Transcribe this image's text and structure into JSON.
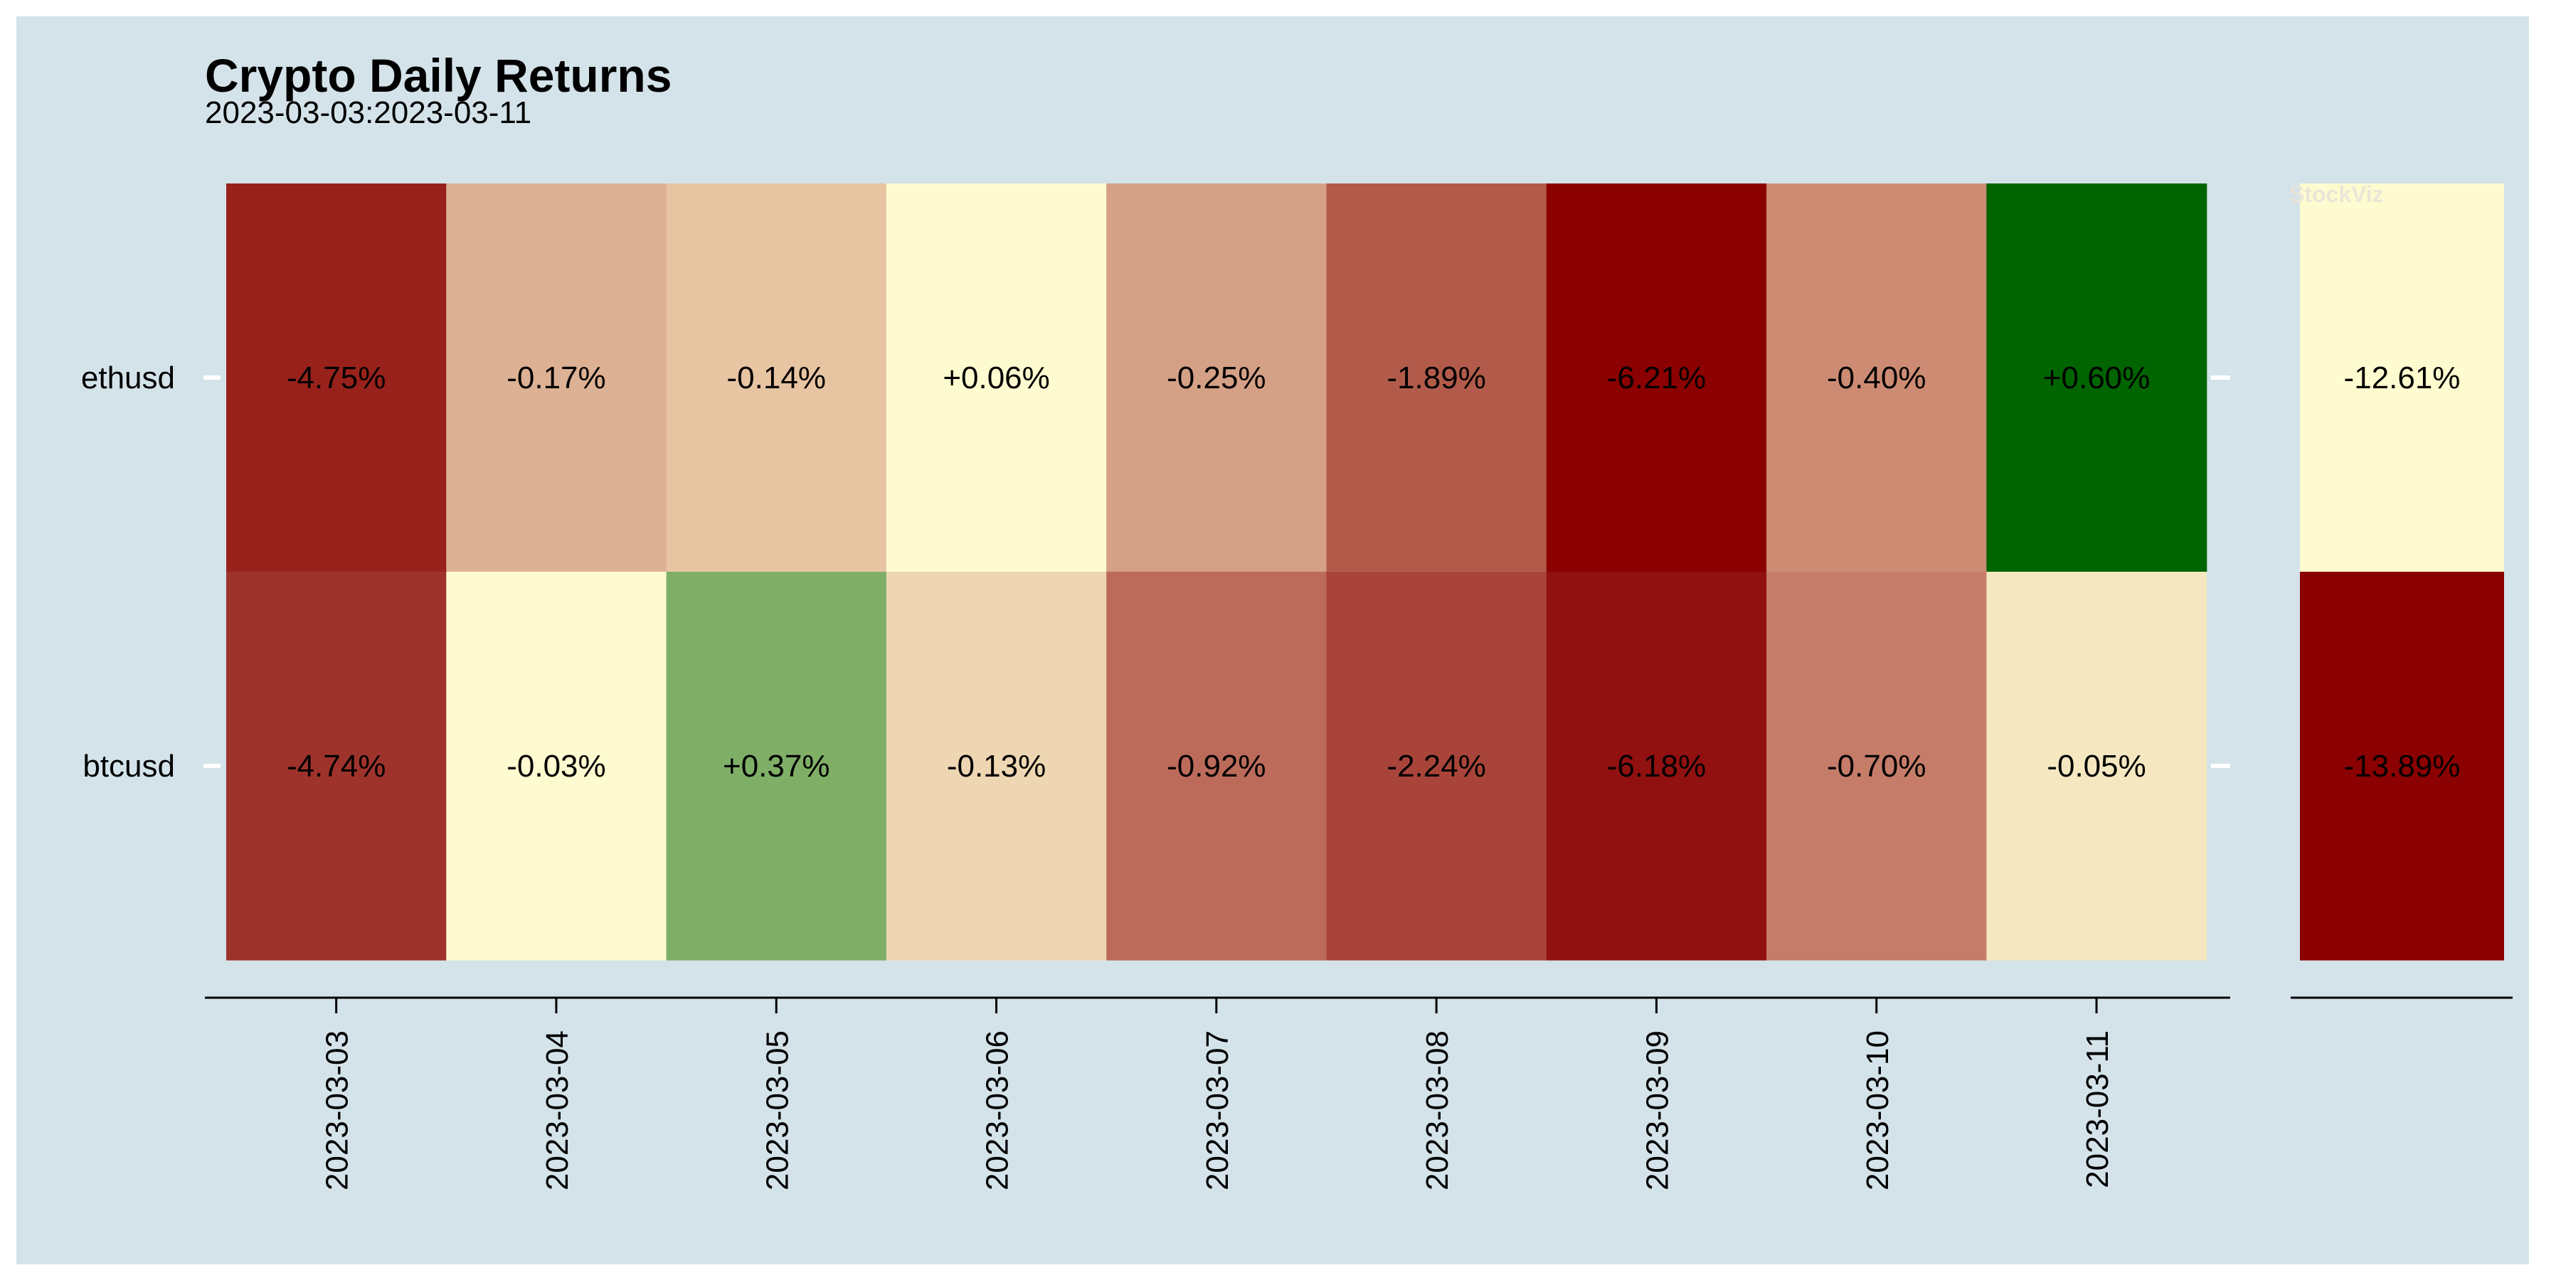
{
  "chart_data": {
    "type": "heatmap",
    "title": "Crypto Daily Returns",
    "subtitle": "2023-03-03:2023-03-11",
    "watermark": "StockViz",
    "rows": [
      "ethusd",
      "btcusd"
    ],
    "columns": [
      "2023-03-03",
      "2023-03-04",
      "2023-03-05",
      "2023-03-06",
      "2023-03-07",
      "2023-03-08",
      "2023-03-09",
      "2023-03-10",
      "2023-03-11"
    ],
    "values": [
      [
        -4.75,
        -0.17,
        -0.14,
        0.06,
        -0.25,
        -1.89,
        -6.21,
        -0.4,
        0.6
      ],
      [
        -4.74,
        -0.03,
        0.37,
        -0.13,
        -0.92,
        -2.24,
        -6.18,
        -0.7,
        -0.05
      ]
    ],
    "labels": [
      [
        "-4.75%",
        "-0.17%",
        "-0.14%",
        "+0.06%",
        "-0.25%",
        "-1.89%",
        "-6.21%",
        "-0.40%",
        "+0.60%"
      ],
      [
        "-4.74%",
        "-0.03%",
        "+0.37%",
        "-0.13%",
        "-0.92%",
        "-2.24%",
        "-6.18%",
        "-0.70%",
        "-0.05%"
      ]
    ],
    "colors": [
      [
        "#98221b",
        "#ddb194",
        "#e7c4a2",
        "#fffbd0",
        "#d4a086",
        "#b25b4b",
        "#8b0000",
        "#cd8b73",
        "#006400"
      ],
      [
        "#9e332c",
        "#fffbd0",
        "#7faf67",
        "#eed6b2",
        "#bc6b5b",
        "#a9443b",
        "#911010",
        "#c57c69",
        "#f5e8c1"
      ]
    ],
    "totals": {
      "values": [
        -12.61,
        -13.89
      ],
      "labels": [
        "-12.61%",
        "-13.89%"
      ],
      "colors": [
        "#fffbd0",
        "#8b0000"
      ]
    },
    "colors_scale": {
      "low": "#8b0000",
      "mid": "#fffbd0",
      "high": "#006400"
    }
  }
}
